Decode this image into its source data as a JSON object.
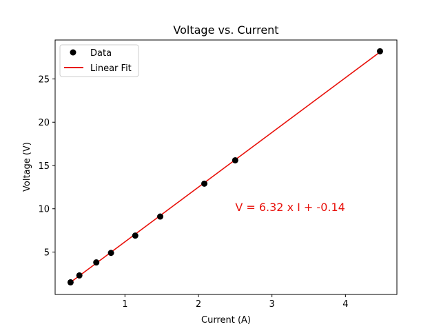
{
  "chart_data": {
    "type": "scatter",
    "title": "Voltage vs. Current",
    "xlabel": "Current (A)",
    "ylabel": "Voltage (V)",
    "xlim": [
      0.05,
      4.7
    ],
    "ylim": [
      0.1,
      29.5
    ],
    "xticks": [
      1,
      2,
      3,
      4
    ],
    "yticks": [
      5,
      10,
      15,
      20,
      25
    ],
    "grid": false,
    "legend_position": "upper-left",
    "series": [
      {
        "name": "Data",
        "kind": "scatter",
        "color": "#000000",
        "x": [
          0.26,
          0.38,
          0.61,
          0.81,
          1.14,
          1.48,
          2.08,
          2.5,
          4.47
        ],
        "y": [
          1.5,
          2.3,
          3.8,
          4.9,
          6.9,
          9.1,
          12.9,
          15.6,
          28.2
        ]
      },
      {
        "name": "Linear Fit",
        "kind": "line",
        "color": "#e8120c",
        "slope": 6.32,
        "intercept": -0.14,
        "x_range": [
          0.26,
          4.47
        ]
      }
    ],
    "annotation": {
      "text": "V = 6.32 x I + -0.14",
      "color": "#e8120c",
      "x": 2.5,
      "y": 10.2
    }
  }
}
